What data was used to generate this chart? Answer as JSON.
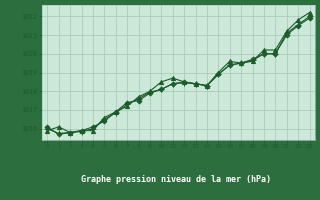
{
  "title": "Graphe pression niveau de la mer (hPa)",
  "bg_color": "#cce8d8",
  "plot_bg_color": "#cce8d8",
  "bottom_bar_color": "#2d6e3e",
  "grid_color": "#aaccb8",
  "line_color": "#1a5c2a",
  "tick_color": "#1a5c2a",
  "title_color": "#ffffff",
  "xlim": [
    -0.5,
    23.5
  ],
  "ylim": [
    1015.4,
    1022.6
  ],
  "yticks": [
    1016,
    1017,
    1018,
    1019,
    1020,
    1021,
    1022
  ],
  "xticks": [
    0,
    1,
    2,
    3,
    4,
    5,
    6,
    7,
    8,
    9,
    10,
    11,
    12,
    13,
    14,
    15,
    16,
    17,
    18,
    19,
    20,
    21,
    22,
    23
  ],
  "series": [
    [
      1015.9,
      1016.1,
      1015.8,
      1015.9,
      1015.9,
      1016.6,
      1016.9,
      1017.2,
      1017.7,
      1018.0,
      1018.5,
      1018.7,
      1018.5,
      1018.4,
      1018.3,
      1019.0,
      1019.6,
      1019.5,
      1019.6,
      1020.2,
      1020.2,
      1021.2,
      1021.8,
      1022.2
    ],
    [
      1016.1,
      1015.7,
      1015.8,
      1015.9,
      1016.1,
      1016.4,
      1016.9,
      1017.4,
      1017.5,
      1017.9,
      1018.1,
      1018.4,
      1018.5,
      1018.4,
      1018.3,
      1018.9,
      1019.4,
      1019.5,
      1019.7,
      1020.0,
      1020.0,
      1021.0,
      1021.5,
      1021.9
    ],
    [
      1016.0,
      1015.75,
      1015.8,
      1015.85,
      1016.0,
      1016.5,
      1016.85,
      1017.3,
      1017.6,
      1017.95,
      1018.1,
      1018.4,
      1018.45,
      1018.4,
      1018.3,
      1018.9,
      1019.4,
      1019.5,
      1019.65,
      1020.0,
      1020.0,
      1021.1,
      1021.55,
      1022.0
    ]
  ]
}
